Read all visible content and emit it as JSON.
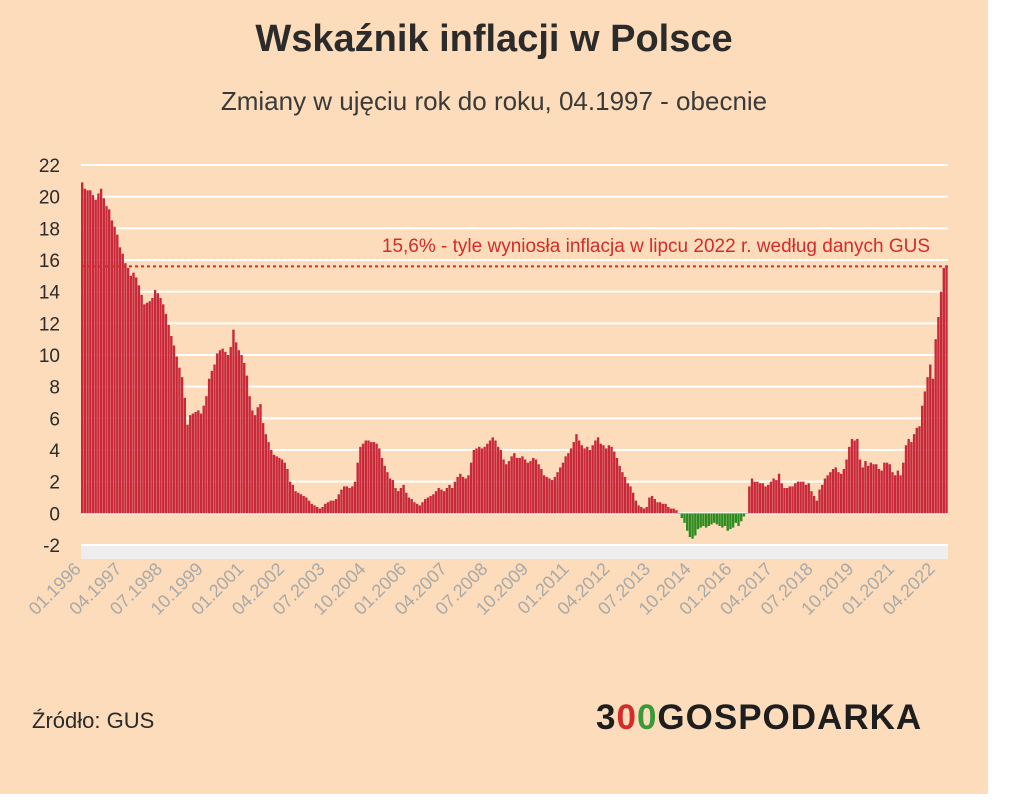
{
  "header": {
    "title": "Wskaźnik inflacji w Polsce",
    "subtitle": "Zmiany w ujęciu rok do roku, 04.1997 - obecnie"
  },
  "footer": {
    "source": "Źródło: GUS",
    "logo_text": "300GOSPODARKA",
    "logo_parts": {
      "prefix": "3",
      "zero1": "0",
      "zero2": "0",
      "suffix": "GOSPODARKA"
    }
  },
  "colors": {
    "background": "#fcdcba",
    "positive_bar": "#c8283a",
    "negative_bar": "#2e8b1f",
    "reference_line": "#d52b2b",
    "gridline": "#ffffff",
    "tick_label": "#a9a9a9"
  },
  "chart_data": {
    "type": "bar",
    "title": "Wskaźnik inflacji w Polsce",
    "subtitle": "Zmiany w ujęciu rok do roku, 04.1997 - obecnie",
    "ylim": [
      -2,
      22
    ],
    "yticks": [
      22,
      20,
      18,
      16,
      14,
      12,
      10,
      8,
      6,
      4,
      2,
      0,
      -2
    ],
    "grid": true,
    "x_tick_labels": [
      "01.1996",
      "04.1997",
      "07.1998",
      "10.1999",
      "01.2001",
      "04.2002",
      "07.2003",
      "10.2004",
      "01.2006",
      "04.2007",
      "07.2008",
      "10.2009",
      "01.2011",
      "04.2012",
      "07.2013",
      "10.2014",
      "01.2016",
      "04.2017",
      "07.2018",
      "10.2019",
      "01.2021",
      "04.2022"
    ],
    "annotation": {
      "text": "15,6% - tyle wyniosła inflacja w lipcu 2022 r. według danych GUS",
      "y": 15.6
    },
    "series": [
      {
        "start": "01.1996",
        "frequency": "monthly",
        "values": [
          20.9,
          20.5,
          20.4,
          20.4,
          20.1,
          19.8,
          20.2,
          20.5,
          19.9,
          19.4,
          19.2,
          18.5,
          18.1,
          17.6,
          16.8,
          16.4,
          15.8,
          15.5,
          15.0,
          15.2,
          14.9,
          14.4,
          13.8,
          13.2,
          13.3,
          13.4,
          13.6,
          14.1,
          13.9,
          13.6,
          13.2,
          12.6,
          11.9,
          11.2,
          10.6,
          9.9,
          9.2,
          8.6,
          7.3,
          5.6,
          6.2,
          6.3,
          6.4,
          6.5,
          6.3,
          6.8,
          7.4,
          8.5,
          9.0,
          9.4,
          10.1,
          10.3,
          10.4,
          10.2,
          10.0,
          10.5,
          11.6,
          10.8,
          10.3,
          10.0,
          9.5,
          8.7,
          7.4,
          6.5,
          6.2,
          6.7,
          6.9,
          5.7,
          5.0,
          4.5,
          4.0,
          3.7,
          3.6,
          3.5,
          3.4,
          3.2,
          2.8,
          2.0,
          1.8,
          1.4,
          1.3,
          1.2,
          1.1,
          1.0,
          0.8,
          0.6,
          0.5,
          0.4,
          0.3,
          0.4,
          0.6,
          0.7,
          0.8,
          0.8,
          0.9,
          1.2,
          1.5,
          1.7,
          1.7,
          1.6,
          1.7,
          2.0,
          3.2,
          4.2,
          4.4,
          4.6,
          4.6,
          4.5,
          4.5,
          4.4,
          4.1,
          3.5,
          3.0,
          2.6,
          2.2,
          2.1,
          1.6,
          1.4,
          1.6,
          1.8,
          1.3,
          1.0,
          0.9,
          0.7,
          0.6,
          0.5,
          0.7,
          0.9,
          1.0,
          1.1,
          1.2,
          1.4,
          1.6,
          1.5,
          1.4,
          1.6,
          1.8,
          1.6,
          2.0,
          2.3,
          2.5,
          2.3,
          2.2,
          2.4,
          3.2,
          4.0,
          4.1,
          4.2,
          4.1,
          4.2,
          4.4,
          4.6,
          4.8,
          4.6,
          4.2,
          4.0,
          3.4,
          3.1,
          3.3,
          3.6,
          3.8,
          3.5,
          3.5,
          3.6,
          3.4,
          3.2,
          3.3,
          3.5,
          3.4,
          3.1,
          2.8,
          2.4,
          2.3,
          2.2,
          2.1,
          2.3,
          2.6,
          2.9,
          3.2,
          3.6,
          3.8,
          4.1,
          4.5,
          5.0,
          4.6,
          4.3,
          4.1,
          4.2,
          4.0,
          4.3,
          4.6,
          4.8,
          4.4,
          4.3,
          4.1,
          4.3,
          4.2,
          3.9,
          3.5,
          3.0,
          2.6,
          2.3,
          1.9,
          1.7,
          1.3,
          0.8,
          0.5,
          0.4,
          0.3,
          0.4,
          1.0,
          1.1,
          0.9,
          0.7,
          0.7,
          0.6,
          0.6,
          0.4,
          0.3,
          0.3,
          0.2,
          0.0,
          -0.3,
          -0.6,
          -1.1,
          -1.5,
          -1.6,
          -1.4,
          -1.0,
          -0.9,
          -0.8,
          -0.9,
          -0.8,
          -0.7,
          -0.6,
          -0.7,
          -0.8,
          -0.9,
          -0.8,
          -1.1,
          -1.0,
          -0.9,
          -0.6,
          -0.8,
          -0.5,
          -0.2,
          0.0,
          1.7,
          2.2,
          2.0,
          2.0,
          1.9,
          1.9,
          1.7,
          1.8,
          2.0,
          2.2,
          2.1,
          2.5,
          1.9,
          1.6,
          1.6,
          1.7,
          1.7,
          1.9,
          2.0,
          2.0,
          2.0,
          1.8,
          1.9,
          1.4,
          1.1,
          0.8,
          1.5,
          1.8,
          2.2,
          2.4,
          2.6,
          2.8,
          2.9,
          2.6,
          2.5,
          2.8,
          3.4,
          4.2,
          4.7,
          4.6,
          4.7,
          3.4,
          2.9,
          3.3,
          3.0,
          3.2,
          3.1,
          3.1,
          2.8,
          2.7,
          3.2,
          3.2,
          3.1,
          2.6,
          2.4,
          2.7,
          2.4,
          3.2,
          4.3,
          4.7,
          4.5,
          5.0,
          5.4,
          5.5,
          6.8,
          7.7,
          8.6,
          9.4,
          8.5,
          11.0,
          12.4,
          14.0,
          15.5,
          15.6
        ]
      }
    ]
  }
}
